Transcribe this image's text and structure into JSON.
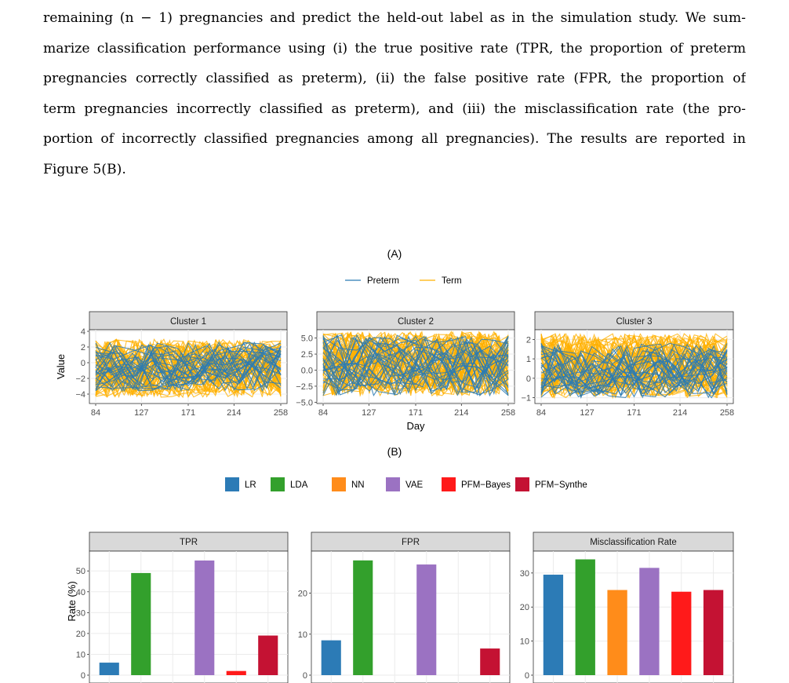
{
  "paragraph": {
    "lines": [
      "remaining (n − 1) pregnancies and predict the held-out label as in the simulation study. We sum-",
      "marize classification performance using (i) the true positive rate (TPR, the proportion of preterm",
      "pregnancies correctly classified as preterm), (ii) the false positive rate (FPR, the proportion of",
      "term pregnancies incorrectly classified as preterm), and (iii) the misclassification rate (the pro-",
      "portion of incorrectly classified pregnancies among all pregnancies). The results are reported in",
      "Figure 5(B)."
    ]
  },
  "colors": {
    "preterm": "#2b7bb3",
    "term": "#ffb000",
    "LR": "#2c7bb6",
    "LDA": "#33a02c",
    "NN": "#ff8c1a",
    "VAE": "#9b72c2",
    "PFM-Bayes": "#ff1a1a",
    "PFM-Synthe": "#c41233",
    "strip": "#d9d9d9",
    "grid": "#ebebeb"
  },
  "figureA": {
    "label": "(A)",
    "legend": [
      "Preterm",
      "Term"
    ],
    "ylabel": "Value",
    "xlabel": "Day",
    "xticks": [
      "84",
      "127",
      "171",
      "214",
      "258"
    ],
    "panels": [
      {
        "title": "Cluster 1",
        "ylim": [
          -5.2,
          4.2
        ],
        "yticks": [
          -4,
          -2,
          0,
          2,
          4
        ],
        "yticklabels": [
          "−4",
          "−2",
          "0",
          "2",
          "4"
        ]
      },
      {
        "title": "Cluster 2",
        "ylim": [
          -5.2,
          6.3
        ],
        "yticks": [
          -5,
          -2.5,
          0,
          2.5,
          5
        ],
        "yticklabels": [
          "−5.0",
          "−2.5",
          "0.0",
          "2.5",
          "5.0"
        ]
      },
      {
        "title": "Cluster 3",
        "ylim": [
          -1.3,
          2.5
        ],
        "yticks": [
          -1,
          0,
          1,
          2
        ],
        "yticklabels": [
          "−1",
          "0",
          "1",
          "2"
        ]
      }
    ]
  },
  "chart_data": {
    "type": "bar",
    "label": "(B)",
    "ylabel": "Rate (%)",
    "categories": [
      "LR",
      "LDA",
      "NN",
      "VAE",
      "PFM−Bayes",
      "PFM−Synthe"
    ],
    "series_keys": [
      "LR",
      "LDA",
      "NN",
      "VAE",
      "PFM-Bayes",
      "PFM-Synthe"
    ],
    "panels": [
      {
        "title": "TPR",
        "values": [
          6,
          49,
          0,
          55,
          2,
          19
        ],
        "ylim": [
          0,
          58
        ],
        "yticks": [
          0,
          10,
          20,
          30,
          40,
          50
        ]
      },
      {
        "title": "FPR",
        "values": [
          8.5,
          28,
          0,
          27,
          0,
          6.5
        ],
        "ylim": [
          0,
          29.5
        ],
        "yticks": [
          0,
          10,
          20
        ]
      },
      {
        "title": "Misclassification Rate",
        "values": [
          29.5,
          34,
          25,
          31.5,
          24.5,
          25
        ],
        "ylim": [
          0,
          35.5
        ],
        "yticks": [
          0,
          10,
          20,
          30
        ]
      }
    ]
  }
}
